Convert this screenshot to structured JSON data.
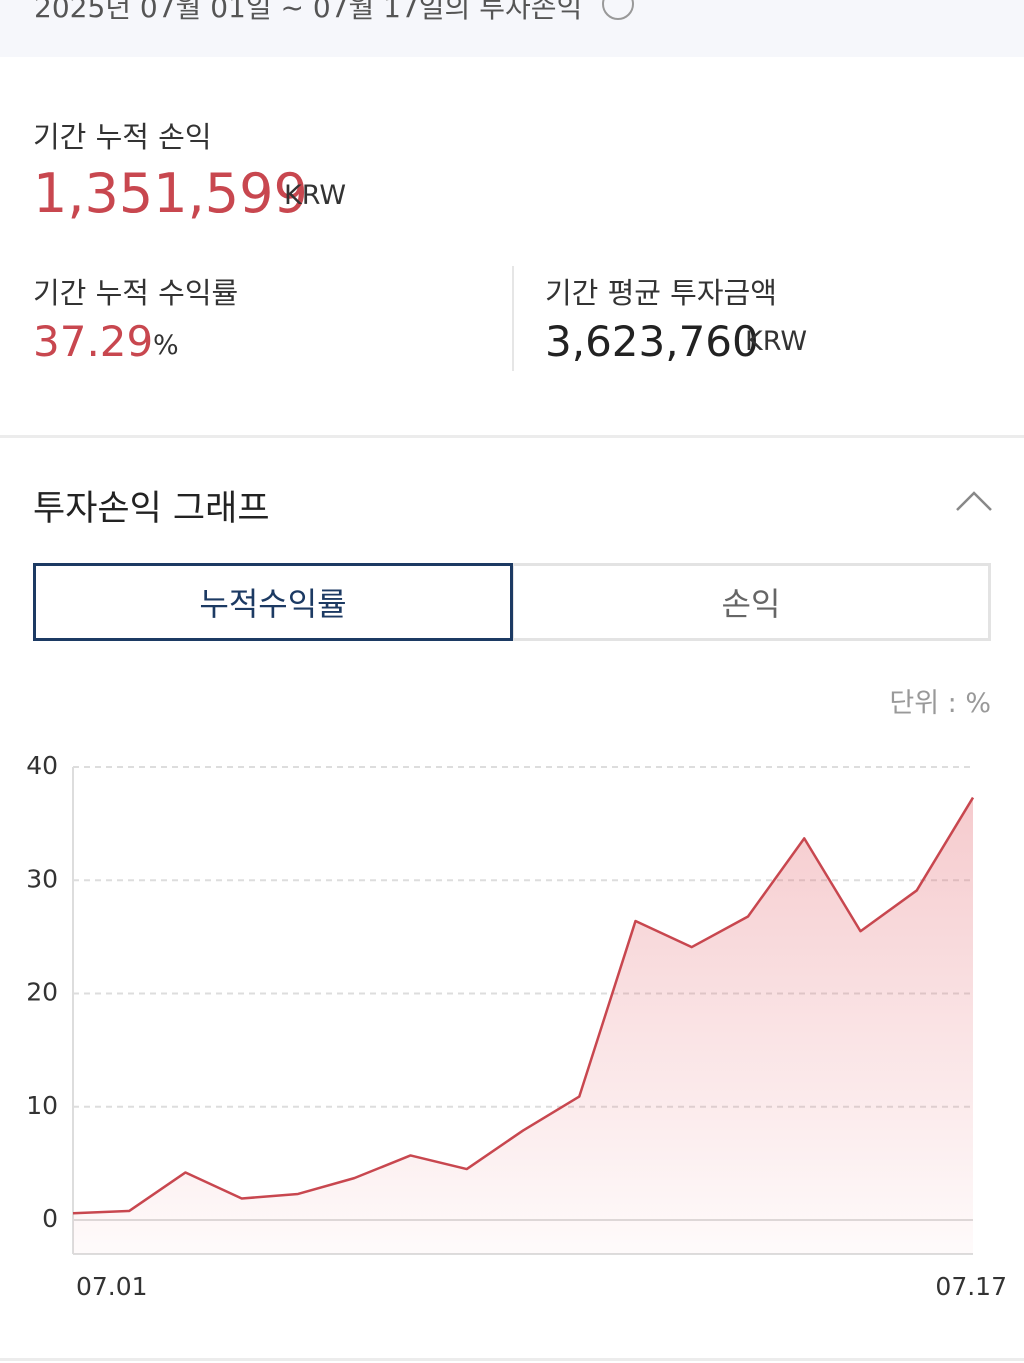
{
  "header": {
    "title": "2025년 07월 01일 ~ 07월 17일의 투자손익"
  },
  "summary": {
    "cumulative_pnl": {
      "label": "기간 누적 손익",
      "value": "1,351,599",
      "unit": "KRW"
    },
    "cumulative_return": {
      "label": "기간 누적 수익률",
      "value": "37.29",
      "unit": "%"
    },
    "avg_investment": {
      "label": "기간 평균 투자금액",
      "value": "3,623,760",
      "unit": "KRW"
    }
  },
  "graph": {
    "title": "투자손익 그래프",
    "tabs": [
      "누적수익률",
      "손익"
    ],
    "unit_note": "단위 : %"
  },
  "chart_data": {
    "type": "line",
    "categories": [
      "07.01",
      null,
      null,
      null,
      null,
      null,
      null,
      null,
      null,
      null,
      null,
      null,
      null,
      null,
      null,
      null,
      "07.17"
    ],
    "series": [
      {
        "color": "#c8474f",
        "values": [
          0.6,
          0.8,
          4.2,
          1.9,
          2.3,
          3.7,
          5.7,
          4.5,
          7.9,
          10.9,
          26.4,
          24.1,
          26.8,
          33.7,
          25.5,
          29.1,
          37.3
        ]
      }
    ],
    "ylim": [
      -3,
      40
    ],
    "yticks": [
      0,
      10,
      20,
      30,
      40
    ],
    "grid": true
  }
}
